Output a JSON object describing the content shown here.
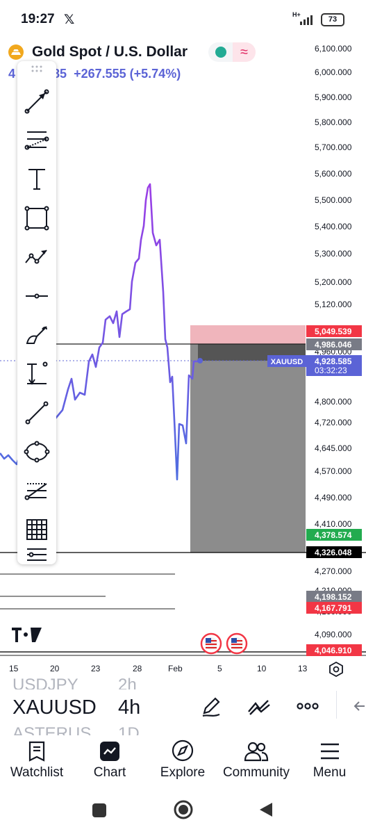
{
  "status_bar": {
    "time": "19:27",
    "app_icon": "x-logo-icon",
    "network": "H+",
    "battery": "73"
  },
  "header": {
    "symbol_name": "Gold Spot / U.S. Dollar",
    "price_visible_start": "4",
    "price_visible_end": "585",
    "change": "+267.555 (+5.74%)",
    "market_status_color": "#22ab94",
    "icons": [
      "gold-logo-icon",
      "market-open-dot-icon",
      "wave-icon"
    ]
  },
  "chart": {
    "line_color_start": "#4f6ee0",
    "line_color_end": "#9b3ee6",
    "y_axis_labels": [
      "6,100.000",
      "6,000.000",
      "5,900.000",
      "5,800.000",
      "5,700.000",
      "5,600.000",
      "5,500.000",
      "5,400.000",
      "5,300.000",
      "5,200.000",
      "5,120.000",
      "4,800.000",
      "4,720.000",
      "4,645.000",
      "4,570.000",
      "4,490.000",
      "4,410.000",
      "4,270.000",
      "4,090.000"
    ],
    "y_axis_partial_labels": [
      "4,960.000",
      "4,210.000",
      "4,160.000"
    ],
    "price_tags": [
      {
        "name": "stop-level",
        "value": "5,049.539",
        "bg": "#f23645"
      },
      {
        "name": "entry-level",
        "value": "4,986.046",
        "bg": "#787b86"
      },
      {
        "name": "current-price",
        "value": "4,928.585",
        "sub": "03:32:23",
        "bg": "#5b63d6"
      },
      {
        "name": "target-level",
        "value": "4,378.574",
        "bg": "#22ab4f"
      },
      {
        "name": "horizontal-line",
        "value": "4,326.048",
        "bg": "#000000"
      },
      {
        "name": "level-gray",
        "value": "4,198.152",
        "bg": "#787b86"
      },
      {
        "name": "level-red",
        "value": "4,167.791",
        "bg": "#f23645"
      },
      {
        "name": "level-red-2",
        "value": "4,046.910",
        "bg": "#f23645"
      }
    ],
    "current_symbol_tag": "XAUUSD",
    "x_axis_labels": [
      "15",
      "20",
      "23",
      "28",
      "Feb",
      "5",
      "10",
      "13"
    ],
    "watermark": "TV"
  },
  "toolbar": {
    "tools": [
      "drag-handle-icon",
      "trend-line-arrow-icon",
      "fib-retracement-icon",
      "text-tool-icon",
      "rectangle-tool-icon",
      "path-tool-icon",
      "horizontal-ray-icon",
      "brush-tool-icon",
      "anchored-price-icon",
      "line-tool-icon",
      "ellipse-tool-icon",
      "pitchfan-icon",
      "grid-tool-icon",
      "menu-lines-icon"
    ]
  },
  "symbol_picker": {
    "above": {
      "symbol": "USDJPY",
      "interval": "2h"
    },
    "selected": {
      "symbol": "XAUUSD",
      "interval": "4h"
    },
    "below": {
      "symbol": "ASTERUS",
      "interval": "1D"
    },
    "actions": [
      "draw-pen-icon",
      "indicators-icon",
      "more-dots-icon",
      "collapse-arrow-icon"
    ]
  },
  "nav": {
    "items": [
      {
        "label": "Watchlist",
        "icon": "watchlist-icon"
      },
      {
        "label": "Chart",
        "icon": "chart-icon"
      },
      {
        "label": "Explore",
        "icon": "compass-icon"
      },
      {
        "label": "Community",
        "icon": "community-icon"
      },
      {
        "label": "Menu",
        "icon": "menu-icon"
      }
    ]
  }
}
